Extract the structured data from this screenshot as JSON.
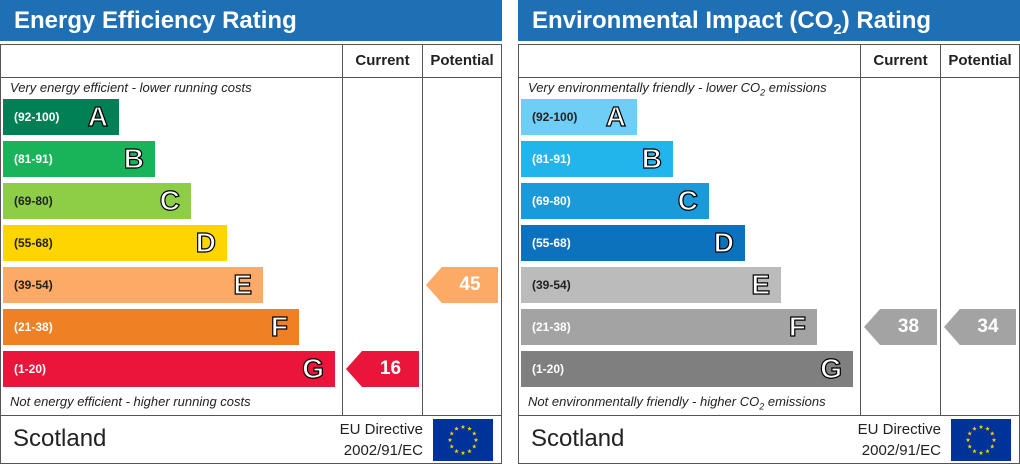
{
  "panels": [
    {
      "title": "Energy Efficiency Rating",
      "column_current": "Current",
      "column_potential": "Potential",
      "top_note": "Very energy efficient - lower running costs",
      "bottom_note": "Not energy efficient - higher running costs",
      "country": "Scotland",
      "directive_line1": "EU Directive",
      "directive_line2": "2002/91/EC",
      "bands": [
        {
          "range": "(92-100)",
          "letter": "A",
          "color": "#008054"
        },
        {
          "range": "(81-91)",
          "letter": "B",
          "color": "#19b459"
        },
        {
          "range": "(69-80)",
          "letter": "C",
          "color": "#8dce46"
        },
        {
          "range": "(55-68)",
          "letter": "D",
          "color": "#ffd500"
        },
        {
          "range": "(39-54)",
          "letter": "E",
          "color": "#fcaa65"
        },
        {
          "range": "(21-38)",
          "letter": "F",
          "color": "#ef8023"
        },
        {
          "range": "(1-20)",
          "letter": "G",
          "color": "#e9153b"
        }
      ],
      "current": {
        "value": "16",
        "band": "G",
        "color": "#e9153b"
      },
      "potential": {
        "value": "45",
        "band": "E",
        "color": "#fcaa65"
      }
    },
    {
      "title_prefix": "Environmental Impact (CO",
      "title_sub": "2",
      "title_suffix": ") Rating",
      "column_current": "Current",
      "column_potential": "Potential",
      "top_note_prefix": "Very environmentally friendly - lower CO",
      "top_note_sub": "2",
      "top_note_suffix": " emissions",
      "bottom_note_prefix": "Not environmentally friendly - higher CO",
      "bottom_note_sub": "2",
      "bottom_note_suffix": " emissions",
      "country": "Scotland",
      "directive_line1": "EU Directive",
      "directive_line2": "2002/91/EC",
      "bands": [
        {
          "range": "(92-100)",
          "letter": "A",
          "color": "#6fcef5"
        },
        {
          "range": "(81-91)",
          "letter": "B",
          "color": "#22b5ec"
        },
        {
          "range": "(69-80)",
          "letter": "C",
          "color": "#1a9ad9"
        },
        {
          "range": "(55-68)",
          "letter": "D",
          "color": "#0d72bd"
        },
        {
          "range": "(39-54)",
          "letter": "E",
          "color": "#bbbbbb"
        },
        {
          "range": "(21-38)",
          "letter": "F",
          "color": "#a3a3a3"
        },
        {
          "range": "(1-20)",
          "letter": "G",
          "color": "#7f7f7f"
        }
      ],
      "current": {
        "value": "38",
        "band": "F",
        "color": "#a3a3a3"
      },
      "potential": {
        "value": "34",
        "band": "F",
        "color": "#a3a3a3"
      }
    }
  ],
  "chart_data": [
    {
      "type": "bar",
      "title": "Energy Efficiency Rating",
      "categories": [
        "(92-100) A",
        "(81-91) B",
        "(69-80) C",
        "(55-68) D",
        "(39-54) E",
        "(21-38) F",
        "(1-20) G"
      ],
      "current": 16,
      "potential": 45
    },
    {
      "type": "bar",
      "title": "Environmental Impact (CO2) Rating",
      "categories": [
        "(92-100) A",
        "(81-91) B",
        "(69-80) C",
        "(55-68) D",
        "(39-54) E",
        "(21-38) F",
        "(1-20) G"
      ],
      "current": 38,
      "potential": 34
    }
  ]
}
